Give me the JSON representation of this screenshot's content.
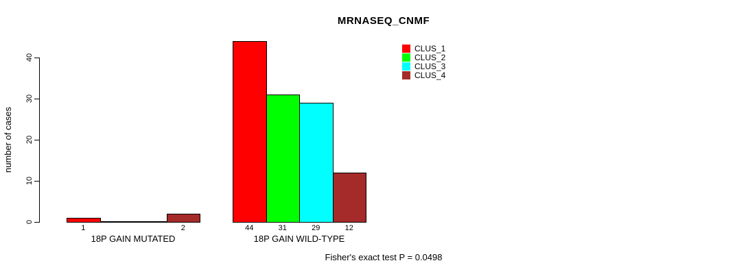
{
  "chart_data": {
    "type": "bar",
    "title": "MRNASEQ_CNMF",
    "xlabel": "",
    "ylabel": "number of cases",
    "ylim": [
      0,
      44
    ],
    "yticks": [
      0,
      10,
      20,
      30,
      40
    ],
    "grid": false,
    "legend_position": "top-right-outside-plot",
    "bar_style": "grouped, black outline, value labels under bars, zero values unlabeled",
    "categories": [
      "18P GAIN MUTATED",
      "18P GAIN WILD-TYPE"
    ],
    "series": [
      {
        "name": "CLUS_1",
        "color": "#FF0000",
        "values": [
          1,
          44
        ]
      },
      {
        "name": "CLUS_2",
        "color": "#00FF00",
        "values": [
          0,
          31
        ]
      },
      {
        "name": "CLUS_3",
        "color": "#00FFFF",
        "values": [
          0,
          29
        ]
      },
      {
        "name": "CLUS_4",
        "color": "#A52A2A",
        "values": [
          2,
          12
        ]
      }
    ],
    "annotation": "Fisher's exact test P = 0.0498"
  }
}
